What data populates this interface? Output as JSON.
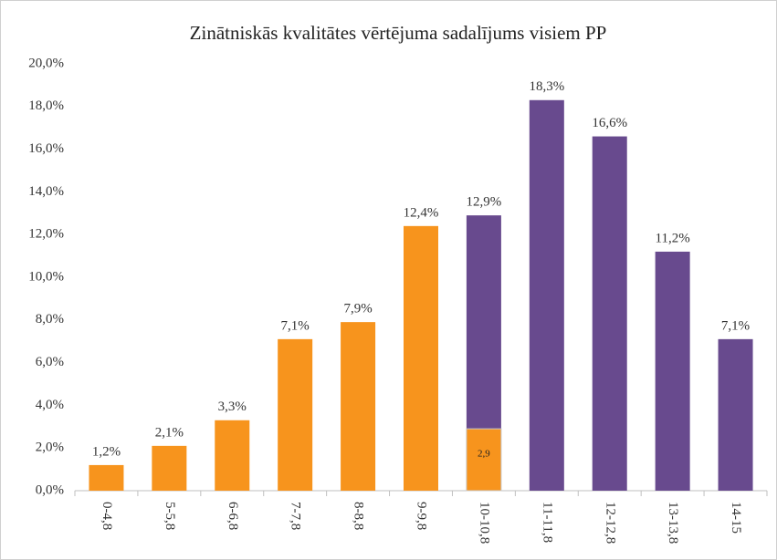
{
  "chart_data": {
    "type": "bar",
    "title": "Zinātniskās kvalitātes vērtējuma sadalījums visiem PP",
    "categories": [
      "0-4,8",
      "5-5,8",
      "6-6,8",
      "7-7,8",
      "8-8,8",
      "9-9,8",
      "10-10,8",
      "11-11,8",
      "12-12,8",
      "13-13,8",
      "14-15"
    ],
    "values": [
      1.2,
      2.1,
      3.3,
      7.1,
      7.9,
      12.4,
      12.9,
      18.3,
      16.6,
      11.2,
      7.1
    ],
    "value_labels": [
      "1,2%",
      "2,1%",
      "3,3%",
      "7,1%",
      "7,9%",
      "12,4%",
      "12,9%",
      "18,3%",
      "16,6%",
      "11,2%",
      "7,1%"
    ],
    "colors": [
      "#f7941d",
      "#f7941d",
      "#f7941d",
      "#f7941d",
      "#f7941d",
      "#f7941d",
      "#684a8e",
      "#684a8e",
      "#684a8e",
      "#684a8e",
      "#684a8e"
    ],
    "overlay": {
      "category": "10-10,8",
      "value": 2.9,
      "value_label": "2,9",
      "color": "#f7941d"
    },
    "ylim": [
      0,
      20
    ],
    "yticks": [
      {
        "value": 0,
        "label": "0,0%"
      },
      {
        "value": 2,
        "label": "2,0%"
      },
      {
        "value": 4,
        "label": "4,0%"
      },
      {
        "value": 6,
        "label": "6,0%"
      },
      {
        "value": 8,
        "label": "8,0%"
      },
      {
        "value": 10,
        "label": "10,0%"
      },
      {
        "value": 12,
        "label": "12,0%"
      },
      {
        "value": 14,
        "label": "14,0%"
      },
      {
        "value": 16,
        "label": "16,0%"
      },
      {
        "value": 18,
        "label": "18,0%"
      },
      {
        "value": 20,
        "label": "20,0%"
      }
    ],
    "grid": false
  }
}
